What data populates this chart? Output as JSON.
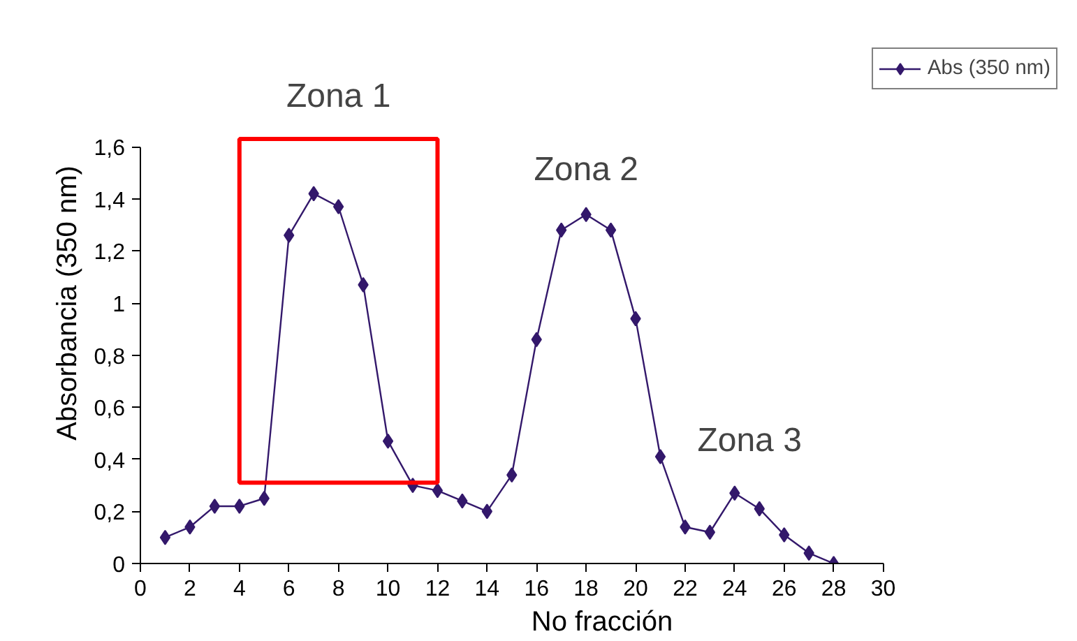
{
  "chart_data": {
    "type": "line",
    "xlabel": "No fracción",
    "ylabel": "Absorbancia (350 nm)",
    "x": [
      1,
      2,
      3,
      4,
      5,
      6,
      7,
      8,
      9,
      10,
      11,
      12,
      13,
      14,
      15,
      16,
      17,
      18,
      19,
      20,
      21,
      22,
      23,
      24,
      25,
      26,
      27,
      28
    ],
    "series": [
      {
        "name": "Abs (350 nm)",
        "color": "#33186b",
        "values": [
          0.1,
          0.14,
          0.22,
          0.22,
          0.25,
          1.26,
          1.42,
          1.37,
          1.07,
          0.47,
          0.3,
          0.28,
          0.24,
          0.2,
          0.34,
          0.86,
          1.28,
          1.34,
          1.28,
          0.94,
          0.41,
          0.14,
          0.12,
          0.27,
          0.21,
          0.11,
          0.04,
          0.0
        ]
      }
    ],
    "xlim": [
      0,
      30
    ],
    "xticks": [
      0,
      2,
      4,
      6,
      8,
      10,
      12,
      14,
      16,
      18,
      20,
      22,
      24,
      26,
      28,
      30
    ],
    "ylim": [
      0,
      1.6
    ],
    "yticks": [
      0,
      {
        "value": 0.2,
        "label": "0,2"
      },
      {
        "value": 0.4,
        "label": "0,4"
      },
      {
        "value": 0.6,
        "label": "0,6"
      },
      {
        "value": 0.8,
        "label": "0,8"
      },
      1,
      {
        "value": 1.2,
        "label": "1,2"
      },
      {
        "value": 1.4,
        "label": "1,4"
      },
      {
        "value": 1.6,
        "label": "1,6"
      }
    ],
    "annotations": [
      "Zona 1",
      "Zona 2",
      "Zona 3"
    ],
    "marker": "diamond",
    "line_style": "solid",
    "legend": "top right"
  }
}
